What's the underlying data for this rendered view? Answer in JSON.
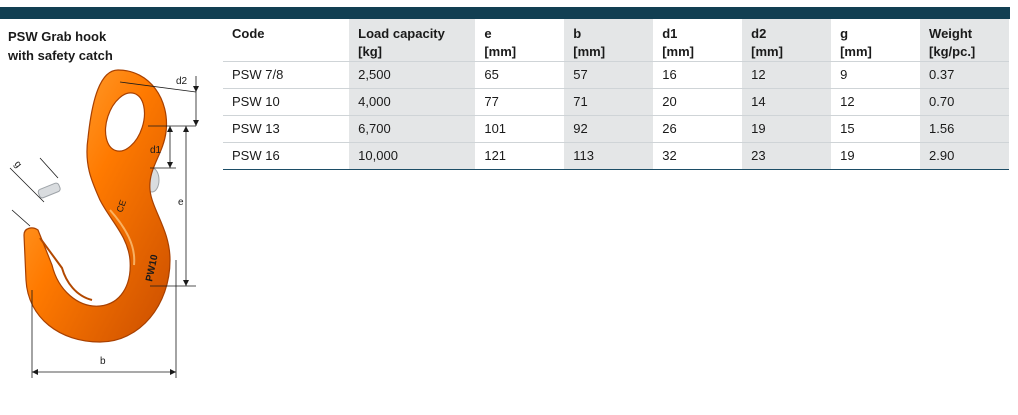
{
  "title": {
    "line1": "PSW Grab hook",
    "line2": "with safety catch"
  },
  "columns": [
    {
      "l1": "Code",
      "l2": ""
    },
    {
      "l1": "Load capacity",
      "l2": "[kg]"
    },
    {
      "l1": "e",
      "l2": "[mm]"
    },
    {
      "l1": "b",
      "l2": "[mm]"
    },
    {
      "l1": "d1",
      "l2": "[mm]"
    },
    {
      "l1": "d2",
      "l2": "[mm]"
    },
    {
      "l1": "g",
      "l2": "[mm]"
    },
    {
      "l1": "Weight",
      "l2": "[kg/pc.]"
    }
  ],
  "rows": [
    [
      "PSW 7/8",
      "2,500",
      "65",
      "57",
      "16",
      "12",
      "9",
      "0.37"
    ],
    [
      "PSW 10",
      "4,000",
      "77",
      "71",
      "20",
      "14",
      "12",
      "0.70"
    ],
    [
      "PSW 13",
      "6,700",
      "101",
      "92",
      "26",
      "19",
      "15",
      "1.56"
    ],
    [
      "PSW 16",
      "10,000",
      "121",
      "113",
      "32",
      "23",
      "19",
      "2.90"
    ]
  ],
  "figure": {
    "dim_labels": {
      "d2": "d2",
      "d1": "d1",
      "e": "e",
      "g": "g",
      "b": "b"
    },
    "hook_marking": "PW10",
    "hook_marking_2": "CE"
  },
  "colors": {
    "header_bar": "#123f52",
    "shade": "#e4e6e7",
    "hook_orange": "#ff7a00",
    "rule": "#1c4d66"
  }
}
